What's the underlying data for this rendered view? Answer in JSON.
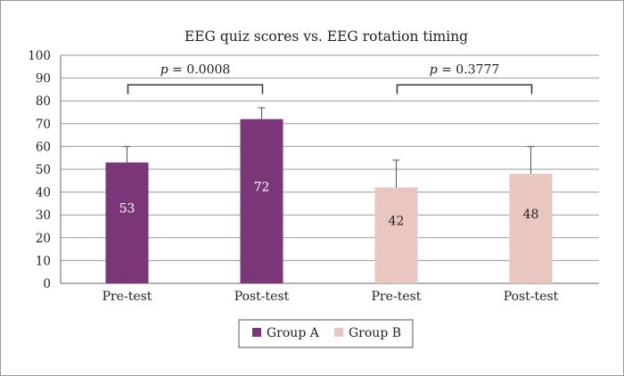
{
  "chart_data": {
    "type": "bar",
    "title": "EEG quiz scores vs. EEG rotation timing",
    "xlabel": "",
    "ylabel": "",
    "ylim": [
      0,
      100
    ],
    "yticks": [
      0,
      10,
      20,
      30,
      40,
      50,
      60,
      70,
      80,
      90,
      100
    ],
    "grid": true,
    "legend_position": "bottom-center",
    "categories": [
      "Pre-test",
      "Post-test",
      "Pre-test",
      "Post-test"
    ],
    "bars": [
      {
        "category": "Pre-test",
        "series": "Group A",
        "value": 53,
        "label": "53",
        "error_upper": 60,
        "color": "#7a3679"
      },
      {
        "category": "Post-test",
        "series": "Group A",
        "value": 72,
        "label": "72",
        "error_upper": 77,
        "color": "#7a3679"
      },
      {
        "category": "Pre-test",
        "series": "Group B",
        "value": 42,
        "label": "42",
        "error_upper": 54,
        "color": "#e9c6c0"
      },
      {
        "category": "Post-test",
        "series": "Group B",
        "value": 48,
        "label": "48",
        "error_upper": 60,
        "color": "#e9c6c0"
      }
    ],
    "series": [
      {
        "name": "Group A",
        "color": "#7a3679"
      },
      {
        "name": "Group B",
        "color": "#e9c6c0"
      }
    ],
    "annotations": [
      {
        "text_prefix": "p",
        "text_value": " = 0.0008",
        "from_bar": 0,
        "to_bar": 1,
        "level": 87
      },
      {
        "text_prefix": "p",
        "text_value": " = 0.3777",
        "from_bar": 2,
        "to_bar": 3,
        "level": 87
      }
    ]
  }
}
